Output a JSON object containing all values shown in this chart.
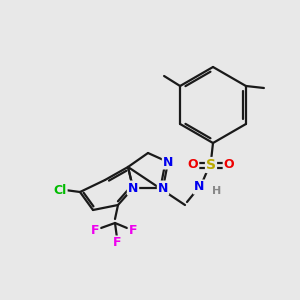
{
  "background_color": "#e8e8e8",
  "bond_color": "#1a1a1a",
  "atom_colors": {
    "N": "#0000ee",
    "O": "#ee0000",
    "S": "#bbaa00",
    "Cl": "#00bb00",
    "F": "#ee00ee",
    "H": "#888888",
    "C": "#1a1a1a"
  },
  "figsize": [
    3.0,
    3.0
  ],
  "dpi": 100
}
